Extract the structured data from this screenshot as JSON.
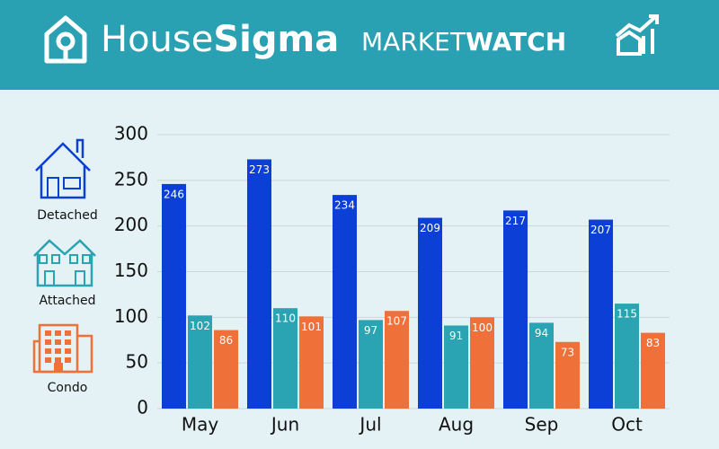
{
  "header": {
    "brand": [
      "House",
      "Sigma"
    ],
    "title": [
      "MARKET",
      "WATCH"
    ]
  },
  "chart_data": {
    "type": "bar",
    "categories": [
      "May",
      "Jun",
      "Jul",
      "Aug",
      "Sep",
      "Oct"
    ],
    "series": [
      {
        "name": "Detached",
        "color": "#0b3fd6",
        "values": [
          246,
          273,
          234,
          209,
          217,
          207
        ]
      },
      {
        "name": "Attached",
        "color": "#2aa3b2",
        "values": [
          102,
          110,
          97,
          91,
          94,
          115
        ]
      },
      {
        "name": "Condo",
        "color": "#f0703a",
        "values": [
          86,
          101,
          107,
          100,
          73,
          83
        ]
      }
    ],
    "ylim": [
      0,
      300
    ],
    "yticks": [
      0,
      50,
      100,
      150,
      200,
      250,
      300
    ],
    "grid": true,
    "legend": "left"
  }
}
